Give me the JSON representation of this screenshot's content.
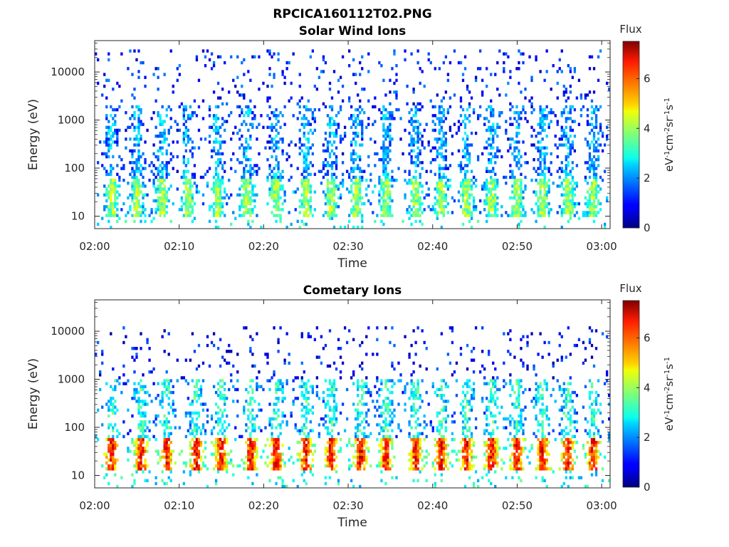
{
  "figure": {
    "title": "RPCICA160112T02.PNG"
  },
  "chart_data": [
    {
      "type": "heatmap",
      "title": "Solar Wind Ions",
      "xlabel": "Time",
      "ylabel": "Energy (eV)",
      "x_ticks": [
        "02:00",
        "02:10",
        "02:20",
        "02:30",
        "02:40",
        "02:50",
        "03:00"
      ],
      "x_range": [
        "02:00",
        "03:01"
      ],
      "y_scale": "log",
      "y_ticks": [
        "10",
        "100",
        "1000",
        "10000"
      ],
      "y_range": [
        5.5,
        45000
      ],
      "colorbar": {
        "title": "Flux",
        "label": "eV-1cm-2sr-1s-1",
        "ticks": [
          "0",
          "2",
          "4",
          "6"
        ],
        "range": [
          0,
          7.5
        ]
      },
      "bursts_minutes": [
        2,
        5,
        8,
        11,
        14.5,
        18,
        21.5,
        25,
        28,
        31,
        34.5,
        38,
        41,
        44,
        47,
        50,
        53,
        56,
        59
      ],
      "low_energy_band_eV": [
        10,
        60
      ],
      "low_energy_level": 3.5,
      "mid_energy_band_eV": [
        50,
        2000
      ],
      "mid_energy_level": 2.3,
      "high_energy_band_eV": [
        2000,
        30000
      ],
      "high_energy_level": 1.2
    },
    {
      "type": "heatmap",
      "title": "Cometary Ions",
      "xlabel": "Time",
      "ylabel": "Energy (eV)",
      "x_ticks": [
        "02:00",
        "02:10",
        "02:20",
        "02:30",
        "02:40",
        "02:50",
        "03:00"
      ],
      "x_range": [
        "02:00",
        "03:01"
      ],
      "y_scale": "log",
      "y_ticks": [
        "10",
        "100",
        "1000",
        "10000"
      ],
      "y_range": [
        5.5,
        45000
      ],
      "colorbar": {
        "title": "Flux",
        "label": "eV-1cm-2sr-1s-1",
        "ticks": [
          "0",
          "2",
          "4",
          "6"
        ],
        "range": [
          0,
          7.5
        ]
      },
      "bursts_minutes": [
        2,
        5.5,
        8.5,
        12,
        15,
        18.5,
        21.5,
        25,
        28,
        31.5,
        34.5,
        38,
        41,
        44,
        47,
        50,
        53,
        56,
        59
      ],
      "low_energy_band_eV": [
        12,
        60
      ],
      "low_energy_level": 5.6,
      "mid_energy_band_eV": [
        50,
        1000
      ],
      "mid_energy_level": 3.2,
      "high_energy_band_eV": [
        1000,
        12000
      ],
      "high_energy_level": 1.0
    }
  ]
}
